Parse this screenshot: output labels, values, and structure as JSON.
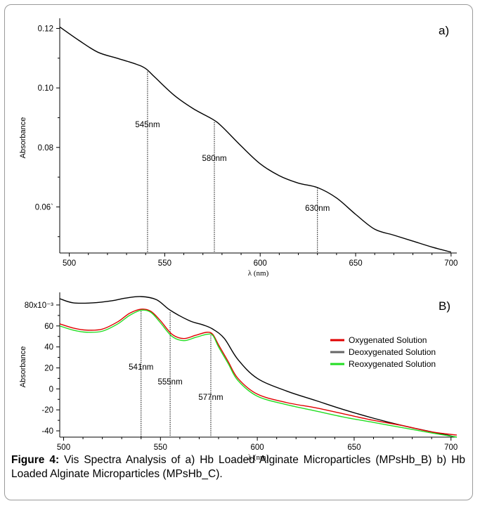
{
  "caption": {
    "label": "Figure 4:",
    "text": "Vis Spectra Analysis of a) Hb Loaded Alginate Microparticles (MPsHb_B) b) Hb Loaded Alginate Microparticles (MPsHb_C)."
  },
  "chart_data": [
    {
      "type": "line",
      "panel_label": "a)",
      "xlabel": "λ (nm)",
      "ylabel": "Absorbance",
      "xlim": [
        495,
        703
      ],
      "ylim": [
        0.0445,
        0.122
      ],
      "x_ticks": [
        500,
        550,
        600,
        650,
        700
      ],
      "x_tick_labels": [
        "500",
        "550",
        "600",
        "650",
        "700"
      ],
      "y_ticks": [
        0.06,
        0.08,
        0.1,
        0.12
      ],
      "y_tick_labels": [
        "0.06`",
        "0.08",
        "0.10",
        "0.12"
      ],
      "series": [
        {
          "color": "#000000",
          "x": [
            495,
            505,
            515,
            525,
            535,
            540,
            545,
            555,
            565,
            575,
            580,
            590,
            600,
            610,
            620,
            630,
            640,
            650,
            660,
            670,
            680,
            690,
            700
          ],
          "y": [
            0.1205,
            0.116,
            0.112,
            0.11,
            0.108,
            0.1065,
            0.1035,
            0.0975,
            0.093,
            0.0895,
            0.087,
            0.0805,
            0.0745,
            0.0705,
            0.068,
            0.0665,
            0.063,
            0.0575,
            0.0525,
            0.0505,
            0.0485,
            0.0465,
            0.0448
          ]
        }
      ],
      "annotations": [
        {
          "label": "545nm",
          "x": 541,
          "y": 0.1055
        },
        {
          "label": "580nm",
          "x": 576,
          "y": 0.0885
        },
        {
          "label": "630nm",
          "x": 630,
          "y": 0.0665
        }
      ]
    },
    {
      "type": "line",
      "panel_label": "B)",
      "xlabel": "λ (nm)",
      "ylabel": "Absorbance",
      "xlim": [
        498,
        703
      ],
      "ylim": [
        -46,
        88
      ],
      "x_ticks": [
        500,
        550,
        600,
        650,
        700
      ],
      "x_tick_labels": [
        "500",
        "550",
        "600",
        "650",
        "700"
      ],
      "y_ticks": [
        -40,
        -20,
        0,
        20,
        40,
        60,
        80
      ],
      "y_tick_labels": [
        "-40",
        "-20",
        "0",
        "20",
        "40",
        "60",
        "80x10⁻³"
      ],
      "legend_position": "right",
      "series": [
        {
          "name": "Deoxygenated Solution",
          "color": "#000000",
          "x": [
            498,
            505,
            515,
            525,
            532,
            540,
            548,
            555,
            565,
            572,
            577,
            583,
            590,
            600,
            615,
            630,
            645,
            660,
            675,
            690,
            703
          ],
          "y": [
            86,
            82,
            82,
            84,
            86.5,
            88,
            85,
            75,
            65,
            61,
            57,
            48,
            28,
            10,
            -2,
            -11,
            -20,
            -28,
            -35,
            -41,
            -46
          ]
        },
        {
          "name": "Oxygenated Solution",
          "color": "#e00000",
          "x": [
            498,
            505,
            512,
            520,
            528,
            534,
            540,
            545,
            550,
            556,
            562,
            568,
            574,
            577,
            580,
            585,
            590,
            600,
            615,
            630,
            645,
            660,
            675,
            690,
            703
          ],
          "y": [
            62,
            58,
            56,
            57,
            64,
            72,
            76,
            74,
            65,
            52,
            48,
            51,
            54,
            52,
            42,
            26,
            10,
            -5,
            -13,
            -18,
            -24,
            -30,
            -35,
            -41,
            -44
          ]
        },
        {
          "name": "Reoxygenated Solution",
          "color": "#22dd22",
          "x": [
            498,
            505,
            512,
            520,
            528,
            534,
            540,
            545,
            550,
            556,
            562,
            568,
            574,
            577,
            580,
            585,
            590,
            600,
            615,
            630,
            645,
            660,
            675,
            690,
            703
          ],
          "y": [
            60,
            56,
            54,
            55,
            62,
            70,
            75,
            73,
            63,
            50,
            46,
            49,
            52,
            51,
            40,
            24,
            8,
            -7,
            -15,
            -21,
            -27,
            -32,
            -37,
            -42,
            -46
          ]
        }
      ],
      "annotations": [
        {
          "label": "541nm",
          "x": 540,
          "y": 76
        },
        {
          "label": "555nm",
          "x": 555,
          "y": 73
        },
        {
          "label": "577nm",
          "x": 576,
          "y": 53
        }
      ]
    }
  ]
}
